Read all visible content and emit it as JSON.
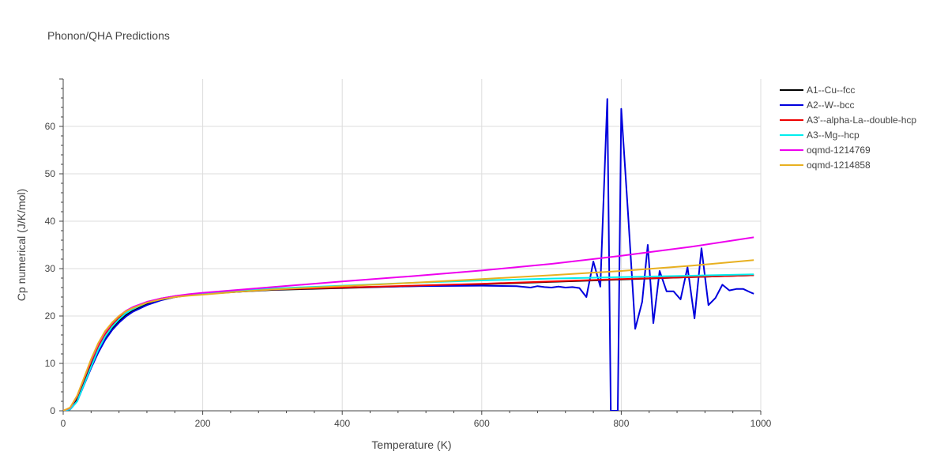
{
  "chart_data": {
    "type": "line",
    "title": "Phonon/QHA Predictions",
    "xlabel": "Temperature (K)",
    "ylabel": "Cp numerical (J/K/mol)",
    "xlim": [
      0,
      1000
    ],
    "ylim": [
      0,
      70
    ],
    "xticks": [
      0,
      200,
      400,
      600,
      800,
      1000
    ],
    "yticks": [
      0,
      10,
      20,
      30,
      40,
      50,
      60
    ],
    "grid": true,
    "legend_position": "top-right",
    "series": [
      {
        "name": "A1--Cu--fcc",
        "color": "#000000",
        "x": [
          0,
          10,
          20,
          30,
          40,
          50,
          60,
          70,
          80,
          90,
          100,
          120,
          140,
          160,
          180,
          200,
          250,
          300,
          400,
          500,
          600,
          700,
          800,
          900,
          990
        ],
        "y": [
          0,
          0.4,
          2.5,
          6.0,
          9.6,
          12.8,
          15.4,
          17.4,
          19.0,
          20.2,
          21.1,
          22.5,
          23.4,
          24.0,
          24.4,
          24.7,
          25.1,
          25.5,
          25.9,
          26.3,
          26.7,
          27.2,
          27.7,
          28.2,
          28.6
        ]
      },
      {
        "name": "A2--W--bcc",
        "color": "#0000dd",
        "x": [
          0,
          10,
          20,
          30,
          40,
          50,
          60,
          70,
          80,
          90,
          100,
          120,
          140,
          160,
          180,
          200,
          250,
          300,
          400,
          500,
          600,
          650,
          670,
          680,
          690,
          700,
          710,
          720,
          730,
          740,
          750,
          760,
          770,
          780,
          785,
          790,
          795,
          800,
          810,
          820,
          830,
          838,
          846,
          855,
          865,
          875,
          885,
          895,
          905,
          915,
          925,
          935,
          945,
          955,
          965,
          975,
          985,
          990
        ],
        "y": [
          0,
          0.3,
          2.0,
          5.5,
          9.0,
          12.2,
          14.9,
          17.0,
          18.6,
          19.9,
          20.9,
          22.3,
          23.3,
          24.0,
          24.4,
          24.6,
          25.1,
          25.6,
          26.0,
          26.3,
          26.4,
          26.3,
          26.0,
          26.3,
          26.1,
          26.0,
          26.2,
          26.0,
          26.1,
          25.9,
          24.0,
          31.5,
          26.2,
          65.8,
          0,
          0,
          0,
          63.7,
          41.0,
          17.3,
          23.0,
          35.0,
          18.5,
          29.5,
          25.2,
          25.2,
          23.5,
          30.3,
          19.5,
          34.3,
          22.3,
          23.8,
          26.6,
          25.4,
          25.7,
          25.7,
          25.0,
          24.7
        ]
      },
      {
        "name": "A3'--alpha-La--double-hcp",
        "color": "#ee0000",
        "x": [
          0,
          10,
          20,
          30,
          40,
          50,
          60,
          70,
          80,
          90,
          100,
          120,
          140,
          160,
          180,
          200,
          250,
          300,
          400,
          500,
          600,
          700,
          800,
          900,
          990
        ],
        "y": [
          0,
          0.6,
          3.0,
          6.7,
          10.4,
          13.6,
          16.2,
          18.1,
          19.6,
          20.8,
          21.6,
          22.9,
          23.7,
          24.2,
          24.5,
          24.8,
          25.2,
          25.6,
          26.0,
          26.4,
          26.8,
          27.3,
          27.8,
          28.2,
          28.6
        ]
      },
      {
        "name": "A3--Mg--hcp",
        "color": "#00eeee",
        "x": [
          0,
          10,
          20,
          30,
          40,
          50,
          60,
          70,
          80,
          90,
          100,
          120,
          140,
          160,
          180,
          200,
          250,
          300,
          400,
          500,
          600,
          700,
          800,
          900,
          990
        ],
        "y": [
          0,
          0.3,
          2.0,
          5.6,
          9.3,
          12.8,
          15.6,
          17.7,
          19.3,
          20.6,
          21.5,
          22.8,
          23.6,
          24.1,
          24.5,
          24.8,
          25.3,
          25.8,
          26.4,
          27.0,
          27.5,
          27.9,
          28.2,
          28.5,
          28.8
        ]
      },
      {
        "name": "oqmd-1214769",
        "color": "#ee00ee",
        "x": [
          0,
          10,
          20,
          30,
          40,
          50,
          60,
          70,
          80,
          90,
          100,
          120,
          140,
          160,
          180,
          200,
          250,
          300,
          400,
          500,
          600,
          700,
          800,
          900,
          990
        ],
        "y": [
          0,
          0.6,
          3.1,
          6.9,
          10.7,
          14.0,
          16.6,
          18.5,
          20.0,
          21.1,
          21.9,
          23.0,
          23.7,
          24.2,
          24.6,
          24.9,
          25.5,
          26.1,
          27.3,
          28.4,
          29.6,
          31.0,
          32.7,
          34.6,
          36.6
        ]
      },
      {
        "name": "oqmd-1214858",
        "color": "#e8b020",
        "x": [
          0,
          10,
          20,
          30,
          40,
          50,
          60,
          70,
          80,
          90,
          100,
          120,
          140,
          160,
          180,
          200,
          250,
          300,
          400,
          500,
          600,
          700,
          800,
          900,
          990
        ],
        "y": [
          0,
          0.7,
          3.2,
          7.0,
          10.9,
          14.2,
          16.8,
          18.6,
          20.0,
          21.0,
          21.7,
          22.8,
          23.5,
          24.0,
          24.3,
          24.5,
          25.1,
          25.6,
          26.3,
          27.0,
          27.8,
          28.6,
          29.5,
          30.6,
          31.8
        ]
      }
    ]
  }
}
